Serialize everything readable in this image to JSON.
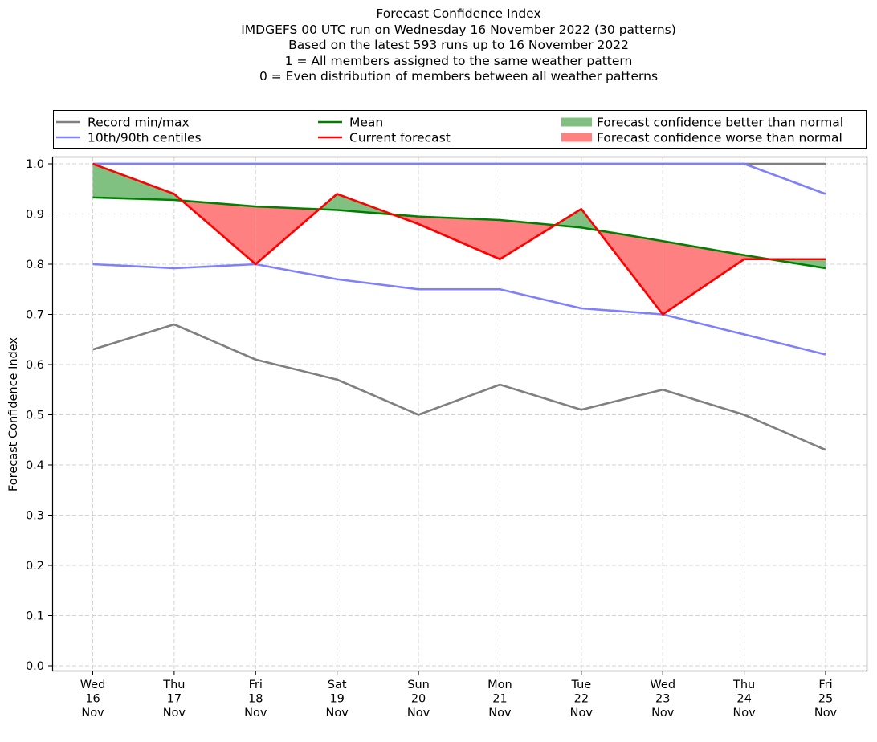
{
  "chart_data": {
    "type": "line",
    "title_lines": [
      "Forecast Confidence Index",
      "IMDGEFS 00 UTC run on Wednesday 16 November 2022 (30 patterns)",
      "Based on the latest 593 runs up to 16 November 2022",
      "1 = All members assigned to the same weather pattern",
      "0 = Even distribution of members between all weather patterns"
    ],
    "xlabel": "",
    "ylabel": "Forecast Confidence Index",
    "ylim": [
      0.0,
      1.0
    ],
    "grid": true,
    "legend_position": "top (above plot)",
    "categories": [
      [
        "Wed",
        "16",
        "Nov"
      ],
      [
        "Thu",
        "17",
        "Nov"
      ],
      [
        "Fri",
        "18",
        "Nov"
      ],
      [
        "Sat",
        "19",
        "Nov"
      ],
      [
        "Sun",
        "20",
        "Nov"
      ],
      [
        "Mon",
        "21",
        "Nov"
      ],
      [
        "Tue",
        "22",
        "Nov"
      ],
      [
        "Wed",
        "23",
        "Nov"
      ],
      [
        "Thu",
        "24",
        "Nov"
      ],
      [
        "Fri",
        "25",
        "Nov"
      ]
    ],
    "yticks": [
      "0.0",
      "0.1",
      "0.2",
      "0.3",
      "0.4",
      "0.5",
      "0.6",
      "0.7",
      "0.8",
      "0.9",
      "1.0"
    ],
    "ytick_values": [
      0.0,
      0.1,
      0.2,
      0.3,
      0.4,
      0.5,
      0.6,
      0.7,
      0.8,
      0.9,
      1.0
    ],
    "series": [
      {
        "name": "Record min",
        "legend": "Record min/max",
        "color": "#808080",
        "values": [
          0.63,
          0.68,
          0.61,
          0.57,
          0.5,
          0.56,
          0.51,
          0.55,
          0.5,
          0.43
        ]
      },
      {
        "name": "Record max",
        "color": "#808080",
        "values": [
          1.0,
          1.0,
          1.0,
          1.0,
          1.0,
          1.0,
          1.0,
          1.0,
          1.0,
          1.0
        ]
      },
      {
        "name": "10th centile",
        "legend": "10th/90th centiles",
        "color": "#8080ff",
        "values": [
          0.8,
          0.792,
          0.8,
          0.77,
          0.75,
          0.75,
          0.712,
          0.7,
          0.66,
          0.62
        ]
      },
      {
        "name": "90th centile",
        "color": "#8080ff",
        "values": [
          1.0,
          1.0,
          1.0,
          1.0,
          1.0,
          1.0,
          1.0,
          1.0,
          1.0,
          0.94
        ]
      },
      {
        "name": "Mean",
        "legend": "Mean",
        "color": "#008000",
        "values": [
          0.933,
          0.928,
          0.915,
          0.908,
          0.895,
          0.888,
          0.873,
          0.846,
          0.818,
          0.792
        ]
      },
      {
        "name": "Current forecast",
        "legend": "Current forecast",
        "color": "#ff0000",
        "values": [
          1.0,
          0.94,
          0.8,
          0.94,
          0.88,
          0.81,
          0.91,
          0.7,
          0.81,
          0.81
        ]
      }
    ],
    "fills": [
      {
        "name": "Forecast confidence better than normal",
        "color": "#80c080",
        "condition": "current > mean"
      },
      {
        "name": "Forecast confidence worse than normal",
        "color": "#ff8080",
        "condition": "current < mean"
      }
    ],
    "legend_entries": [
      {
        "label": "Record min/max",
        "kind": "line",
        "color": "#808080"
      },
      {
        "label": "10th/90th centiles",
        "kind": "line",
        "color": "#8080ff"
      },
      {
        "label": "Mean",
        "kind": "line",
        "color": "#008000"
      },
      {
        "label": "Current forecast",
        "kind": "line",
        "color": "#ff0000"
      },
      {
        "label": "Forecast confidence better than normal",
        "kind": "patch",
        "color": "#80c080"
      },
      {
        "label": "Forecast confidence worse than normal",
        "kind": "patch",
        "color": "#ff8080"
      }
    ]
  }
}
